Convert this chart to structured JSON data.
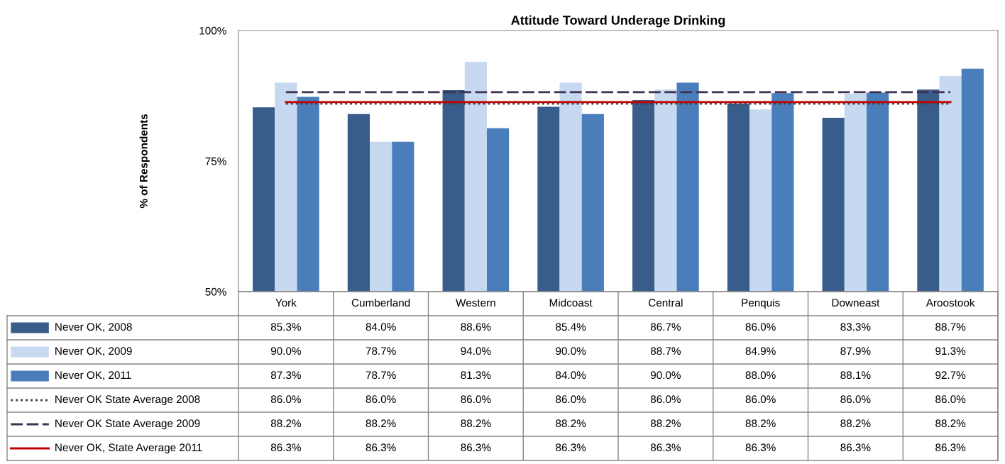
{
  "chart_data": {
    "type": "bar",
    "title": "Attitude Toward Underage Drinking",
    "ylabel": "% of Respondents",
    "categories": [
      "York",
      "Cumberland",
      "Western",
      "Midcoast",
      "Central",
      "Penquis",
      "Downeast",
      "Aroostook"
    ],
    "ylim": [
      50,
      100
    ],
    "yticks": [
      {
        "value": 50,
        "label": "50%"
      },
      {
        "value": 75,
        "label": "75%"
      },
      {
        "value": 100,
        "label": "100%"
      }
    ],
    "grid": false,
    "legend": "bottom",
    "series": [
      {
        "name": "Never OK, 2008",
        "color": "#385d8a",
        "values": [
          85.3,
          84.0,
          88.6,
          85.4,
          86.7,
          86.0,
          83.3,
          88.7
        ],
        "value_labels": [
          "85.3%",
          "84.0%",
          "88.6%",
          "85.4%",
          "86.7%",
          "86.0%",
          "83.3%",
          "88.7%"
        ]
      },
      {
        "name": "Never OK, 2009",
        "color": "#c6d9f1",
        "values": [
          90.0,
          78.7,
          94.0,
          90.0,
          88.7,
          84.9,
          87.9,
          91.3
        ],
        "value_labels": [
          "90.0%",
          "78.7%",
          "94.0%",
          "90.0%",
          "88.7%",
          "84.9%",
          "87.9%",
          "91.3%"
        ]
      },
      {
        "name": "Never OK, 2011",
        "color": "#4a7ebb",
        "values": [
          87.3,
          78.7,
          81.3,
          84.0,
          90.0,
          88.0,
          88.1,
          92.7
        ],
        "value_labels": [
          "87.3%",
          "78.7%",
          "81.3%",
          "84.0%",
          "90.0%",
          "88.0%",
          "88.1%",
          "92.7%"
        ]
      },
      {
        "name": "Never OK State Average 2008",
        "type": "line",
        "line_style": "dotted",
        "color": "#404040",
        "values": [
          86.0,
          86.0,
          86.0,
          86.0,
          86.0,
          86.0,
          86.0,
          86.0
        ],
        "value_labels": [
          "86.0%",
          "86.0%",
          "86.0%",
          "86.0%",
          "86.0%",
          "86.0%",
          "86.0%",
          "86.0%"
        ]
      },
      {
        "name": "Never OK State Average 2009",
        "type": "line",
        "line_style": "dashed",
        "color": "#3f3151",
        "values": [
          88.2,
          88.2,
          88.2,
          88.2,
          88.2,
          88.2,
          88.2,
          88.2
        ],
        "value_labels": [
          "88.2%",
          "88.2%",
          "88.2%",
          "88.2%",
          "88.2%",
          "88.2%",
          "88.2%",
          "88.2%"
        ]
      },
      {
        "name": "Never OK, State Average 2011",
        "type": "line",
        "line_style": "solid",
        "color": "#c00000",
        "values": [
          86.3,
          86.3,
          86.3,
          86.3,
          86.3,
          86.3,
          86.3,
          86.3
        ],
        "value_labels": [
          "86.3%",
          "86.3%",
          "86.3%",
          "86.3%",
          "86.3%",
          "86.3%",
          "86.3%",
          "86.3%"
        ]
      }
    ]
  }
}
